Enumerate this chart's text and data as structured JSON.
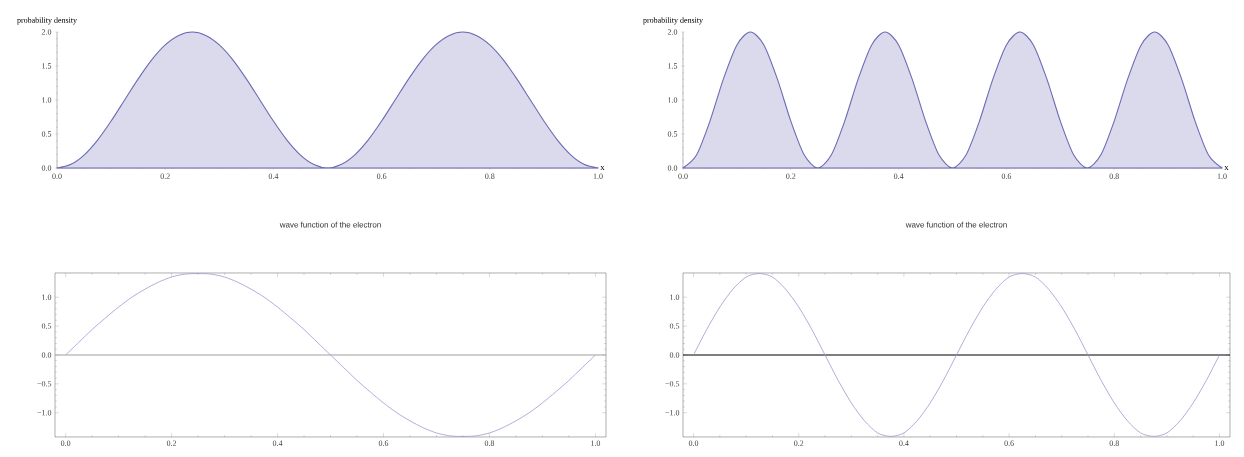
{
  "chart_data": [
    {
      "type": "area",
      "xlabel": "x",
      "ylabel": "probability density",
      "color": "#6b6bb5",
      "x": [
        0,
        0.025,
        0.05,
        0.075,
        0.1,
        0.125,
        0.15,
        0.175,
        0.2,
        0.225,
        0.25,
        0.275,
        0.3,
        0.325,
        0.35,
        0.375,
        0.4,
        0.425,
        0.45,
        0.475,
        0.5,
        0.525,
        0.55,
        0.575,
        0.6,
        0.625,
        0.65,
        0.675,
        0.7,
        0.725,
        0.75,
        0.775,
        0.8,
        0.825,
        0.85,
        0.875,
        0.9,
        0.925,
        0.95,
        0.975,
        1
      ],
      "values": [
        0,
        0.05,
        0.19,
        0.41,
        0.69,
        1,
        1.31,
        1.59,
        1.81,
        1.95,
        2,
        1.95,
        1.81,
        1.59,
        1.31,
        1,
        0.69,
        0.41,
        0.19,
        0.05,
        0,
        0.05,
        0.19,
        0.41,
        0.69,
        1,
        1.31,
        1.59,
        1.81,
        1.95,
        2,
        1.95,
        1.81,
        1.59,
        1.31,
        1,
        0.69,
        0.41,
        0.19,
        0.05,
        0
      ],
      "xlim": [
        0,
        1
      ],
      "ylim": [
        0,
        2
      ],
      "xticks": [
        {
          "value": 0,
          "label": "0.0"
        },
        {
          "value": 0.2,
          "label": "0.2"
        },
        {
          "value": 0.4,
          "label": "0.4"
        },
        {
          "value": 0.6,
          "label": "0.6"
        },
        {
          "value": 0.8,
          "label": "0.8"
        },
        {
          "value": 1,
          "label": "1.0"
        }
      ],
      "yticks": [
        {
          "value": 0,
          "label": "0.0"
        },
        {
          "value": 0.5,
          "label": "0.5"
        },
        {
          "value": 1,
          "label": "1.0"
        },
        {
          "value": 1.5,
          "label": "1.5"
        },
        {
          "value": 2,
          "label": "2.0"
        }
      ]
    },
    {
      "type": "area",
      "xlabel": "x",
      "ylabel": "probability density",
      "color": "#6b6bb5",
      "x": [
        0,
        0.025,
        0.05,
        0.075,
        0.1,
        0.125,
        0.15,
        0.175,
        0.2,
        0.225,
        0.25,
        0.275,
        0.3,
        0.325,
        0.35,
        0.375,
        0.4,
        0.425,
        0.45,
        0.475,
        0.5,
        0.525,
        0.55,
        0.575,
        0.6,
        0.625,
        0.65,
        0.675,
        0.7,
        0.725,
        0.75,
        0.775,
        0.8,
        0.825,
        0.85,
        0.875,
        0.9,
        0.925,
        0.95,
        0.975,
        1
      ],
      "values": [
        0,
        0.19,
        0.69,
        1.31,
        1.81,
        2,
        1.81,
        1.31,
        0.69,
        0.19,
        0,
        0.19,
        0.69,
        1.31,
        1.81,
        2,
        1.81,
        1.31,
        0.69,
        0.19,
        0,
        0.19,
        0.69,
        1.31,
        1.81,
        2,
        1.81,
        1.31,
        0.69,
        0.19,
        0,
        0.19,
        0.69,
        1.31,
        1.81,
        2,
        1.81,
        1.31,
        0.69,
        0.19,
        0
      ],
      "xlim": [
        0,
        1
      ],
      "ylim": [
        0,
        2
      ],
      "xticks": [
        {
          "value": 0,
          "label": "0.0"
        },
        {
          "value": 0.2,
          "label": "0.2"
        },
        {
          "value": 0.4,
          "label": "0.4"
        },
        {
          "value": 0.6,
          "label": "0.6"
        },
        {
          "value": 0.8,
          "label": "0.8"
        },
        {
          "value": 1,
          "label": "1.0"
        }
      ],
      "yticks": [
        {
          "value": 0,
          "label": "0.0"
        },
        {
          "value": 0.5,
          "label": "0.5"
        },
        {
          "value": 1,
          "label": "1.0"
        },
        {
          "value": 1.5,
          "label": "1.5"
        },
        {
          "value": 2,
          "label": "2.0"
        }
      ]
    },
    {
      "type": "line",
      "title": "wave function of the electron",
      "color": "#9a9ad0",
      "x": [
        0,
        0.025,
        0.05,
        0.075,
        0.1,
        0.125,
        0.15,
        0.175,
        0.2,
        0.225,
        0.25,
        0.275,
        0.3,
        0.325,
        0.35,
        0.375,
        0.4,
        0.425,
        0.45,
        0.475,
        0.5,
        0.525,
        0.55,
        0.575,
        0.6,
        0.625,
        0.65,
        0.675,
        0.7,
        0.725,
        0.75,
        0.775,
        0.8,
        0.825,
        0.85,
        0.875,
        0.9,
        0.925,
        0.95,
        0.975,
        1
      ],
      "values": [
        0,
        0.22,
        0.44,
        0.64,
        0.83,
        1,
        1.14,
        1.26,
        1.35,
        1.4,
        1.41,
        1.4,
        1.35,
        1.26,
        1.14,
        1,
        0.83,
        0.64,
        0.44,
        0.22,
        0,
        -0.22,
        -0.44,
        -0.64,
        -0.83,
        -1,
        -1.14,
        -1.26,
        -1.35,
        -1.4,
        -1.41,
        -1.4,
        -1.35,
        -1.26,
        -1.14,
        -1,
        -0.83,
        -0.64,
        -0.44,
        -0.22,
        0
      ],
      "xlim": [
        -0.02,
        1.02
      ],
      "ylim": [
        -1.42,
        1.42
      ],
      "xticks": [
        {
          "value": 0,
          "label": "0.0"
        },
        {
          "value": 0.2,
          "label": "0.2"
        },
        {
          "value": 0.4,
          "label": "0.4"
        },
        {
          "value": 0.6,
          "label": "0.6"
        },
        {
          "value": 0.8,
          "label": "0.8"
        },
        {
          "value": 1,
          "label": "1.0"
        }
      ],
      "yticks": [
        {
          "value": -1,
          "label": "−1.0"
        },
        {
          "value": -0.5,
          "label": "−0.5"
        },
        {
          "value": 0,
          "label": "0.0"
        },
        {
          "value": 0.5,
          "label": "0.5"
        },
        {
          "value": 1,
          "label": "1.0"
        }
      ],
      "ref_lines": [
        {
          "axis": "y",
          "value": 0,
          "color": "#a0a0a0"
        }
      ]
    },
    {
      "type": "line",
      "title": "wave function of the electron",
      "color": "#9a9ad0",
      "x": [
        0,
        0.025,
        0.05,
        0.075,
        0.1,
        0.125,
        0.15,
        0.175,
        0.2,
        0.225,
        0.25,
        0.275,
        0.3,
        0.325,
        0.35,
        0.375,
        0.4,
        0.425,
        0.45,
        0.475,
        0.5,
        0.525,
        0.55,
        0.575,
        0.6,
        0.625,
        0.65,
        0.675,
        0.7,
        0.725,
        0.75,
        0.775,
        0.8,
        0.825,
        0.85,
        0.875,
        0.9,
        0.925,
        0.95,
        0.975,
        1
      ],
      "values": [
        0,
        0.44,
        0.83,
        1.14,
        1.35,
        1.41,
        1.35,
        1.14,
        0.83,
        0.44,
        0,
        -0.44,
        -0.83,
        -1.14,
        -1.35,
        -1.41,
        -1.35,
        -1.14,
        -0.83,
        -0.44,
        0,
        0.44,
        0.83,
        1.14,
        1.35,
        1.41,
        1.35,
        1.14,
        0.83,
        0.44,
        0,
        -0.44,
        -0.83,
        -1.14,
        -1.35,
        -1.41,
        -1.35,
        -1.14,
        -0.83,
        -0.44,
        0
      ],
      "xlim": [
        -0.02,
        1.02
      ],
      "ylim": [
        -1.42,
        1.42
      ],
      "xticks": [
        {
          "value": 0,
          "label": "0.0"
        },
        {
          "value": 0.2,
          "label": "0.2"
        },
        {
          "value": 0.4,
          "label": "0.4"
        },
        {
          "value": 0.6,
          "label": "0.6"
        },
        {
          "value": 0.8,
          "label": "0.8"
        },
        {
          "value": 1,
          "label": "1.0"
        }
      ],
      "yticks": [
        {
          "value": -1,
          "label": "−1.0"
        },
        {
          "value": -0.5,
          "label": "−0.5"
        },
        {
          "value": 0,
          "label": "0.0"
        },
        {
          "value": 0.5,
          "label": "0.5"
        },
        {
          "value": 1,
          "label": "1.0"
        }
      ],
      "ref_lines": [
        {
          "axis": "y",
          "value": 0,
          "color": "#000000"
        }
      ]
    }
  ]
}
